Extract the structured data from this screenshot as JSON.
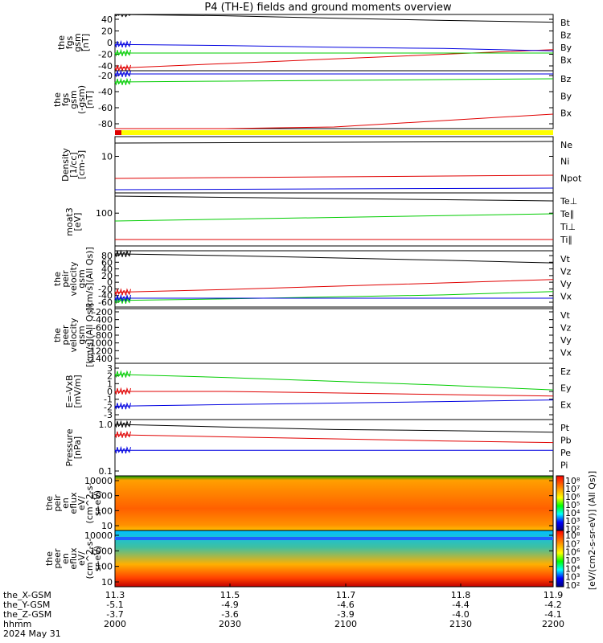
{
  "title": "P4 (TH-E) fields and ground moments overview",
  "colors": {
    "black": "#000000",
    "red": "#e00000",
    "green": "#00cc00",
    "blue": "#0000e0",
    "yellow": "#ffff00",
    "bar_red": "#e00000"
  },
  "panels": [
    {
      "id": "fgs-gsm-1",
      "ylabel": [
        "the",
        "fgs",
        "gsm",
        "[nT]"
      ],
      "ticks": [
        "40",
        "20",
        "0",
        "-20",
        "-40"
      ],
      "legend": [
        {
          "label": "Bt",
          "color": "black"
        },
        {
          "label": "Bz",
          "color": "red"
        },
        {
          "label": "By",
          "color": "green"
        },
        {
          "label": "Bx",
          "color": "blue"
        }
      ]
    },
    {
      "id": "fgs-gsm-2",
      "ylabel": [
        "the",
        "fgs",
        "gsm",
        "(-gsm)",
        "[nT]"
      ],
      "ticks": [
        "-20",
        "-40",
        "-60",
        "-80"
      ],
      "legend": [
        {
          "label": "Bz",
          "color": "red"
        },
        {
          "label": "By",
          "color": "green"
        },
        {
          "label": "Bx",
          "color": "blue"
        }
      ]
    },
    {
      "id": "quality-bar",
      "ylabel": [],
      "ticks": [],
      "legend": []
    },
    {
      "id": "density",
      "ylabel": [
        "Density",
        "[1/cc]",
        "[cm-3]"
      ],
      "ticks": [
        "10"
      ],
      "legend": [
        {
          "label": "Ne",
          "color": "red"
        },
        {
          "label": "Ni",
          "color": "black"
        },
        {
          "label": "Npot",
          "color": "blue"
        }
      ]
    },
    {
      "id": "temperature",
      "ylabel": [
        "moat3",
        "[eV]"
      ],
      "ticks": [
        "100"
      ],
      "legend": [
        {
          "label": "Te⊥",
          "color": "red"
        },
        {
          "label": "Te∥",
          "color": "black"
        },
        {
          "label": "Ti⊥",
          "color": "blue"
        },
        {
          "label": "Ti∥",
          "color": "green"
        }
      ]
    },
    {
      "id": "peir-velocity",
      "ylabel": [
        "the",
        "peir",
        "velocity",
        "gsm",
        "[km/s](All Qs)]"
      ],
      "ticks": [
        "80",
        "60",
        "40",
        "20",
        "0",
        "-20",
        "-40",
        "-60"
      ],
      "legend": [
        {
          "label": "Vt",
          "color": "black"
        },
        {
          "label": "Vz",
          "color": "red"
        },
        {
          "label": "Vy",
          "color": "green"
        },
        {
          "label": "Vx",
          "color": "blue"
        }
      ]
    },
    {
      "id": "peer-velocity",
      "ylabel": [
        "the",
        "peer",
        "velocity",
        "gsm",
        "[km/s](All Qs)]"
      ],
      "ticks": [
        "-200",
        "-400",
        "-600",
        "-800",
        "-1000",
        "-1200",
        "-1400"
      ],
      "legend": [
        {
          "label": "Vt",
          "color": "black"
        },
        {
          "label": "Vz",
          "color": "red"
        },
        {
          "label": "Vy",
          "color": "green"
        },
        {
          "label": "Vx",
          "color": "blue"
        }
      ]
    },
    {
      "id": "efield",
      "ylabel": [
        "E=-VxB",
        "[mV/m]"
      ],
      "ticks": [
        "3",
        "2",
        "1",
        "0",
        "-1",
        "-2",
        "-3"
      ],
      "legend": [
        {
          "label": "Ez",
          "color": "red"
        },
        {
          "label": "Ey",
          "color": "green"
        },
        {
          "label": "Ex",
          "color": "blue"
        }
      ]
    },
    {
      "id": "pressure",
      "ylabel": [
        "Pressure",
        "[nPa]"
      ],
      "ticks": [
        "1.0",
        "0.1"
      ],
      "legend": [
        {
          "label": "Pt",
          "color": "black"
        },
        {
          "label": "Pb",
          "color": "red"
        },
        {
          "label": "Pe",
          "color": "green"
        },
        {
          "label": "Pi",
          "color": "blue"
        }
      ]
    },
    {
      "id": "peir-eflux",
      "ylabel": [
        "the",
        "peir",
        "en",
        "eflux",
        "eV/",
        "(cm^2-s-",
        "sr-eV)"
      ],
      "ticks": [
        "10000",
        "1000",
        "100",
        "10"
      ],
      "legend": []
    },
    {
      "id": "peer-eflux",
      "ylabel": [
        "the",
        "peer",
        "en",
        "eflux",
        "eV/",
        "(cm^2-s-",
        "sr-eV)"
      ],
      "ticks": [
        "10000",
        "1000",
        "100",
        "10"
      ],
      "legend": []
    }
  ],
  "colorbar": {
    "ticks": [
      "10⁸",
      "10⁷",
      "10⁶",
      "10⁵",
      "10⁴",
      "10³",
      "10²"
    ],
    "ticks2": [
      "10⁸",
      "10⁷",
      "10⁶",
      "10⁵",
      "10⁴",
      "10³",
      "10²"
    ],
    "label": "[eV/(cm2-s-sr-eV)] (All Qs)]"
  },
  "xaxis": {
    "rows": [
      {
        "label": "the_X-GSM",
        "values": [
          "-5.1",
          "-4.9",
          "-4.6",
          "-4.4",
          "-4.2"
        ]
      },
      {
        "label": "the_Y-GSM",
        "values": [
          "-3.7",
          "-3.6",
          "-3.9",
          "-4.0",
          "-4.1"
        ]
      },
      {
        "label": "the_Z-GSM",
        "values": [
          "2000",
          "2030",
          "2100",
          "2130",
          "2200"
        ]
      },
      {
        "label": "hhmm",
        "values": []
      }
    ],
    "top_values": [
      "11.3",
      "11.5",
      "11.7",
      "11.8",
      "11.9"
    ],
    "date": "2024 May 31"
  },
  "chart_data": {
    "type": "line",
    "title": "P4 (TH-E) fields and ground moments overview",
    "x": [
      "2000",
      "2030",
      "2100",
      "2130",
      "2200"
    ],
    "series": [
      {
        "name": "Bt",
        "panel": "fgs-gsm-1",
        "values": [
          50,
          46,
          42,
          38,
          35
        ]
      },
      {
        "name": "Bz",
        "panel": "fgs-gsm-1",
        "values": [
          -44,
          -36,
          -28,
          -20,
          -12
        ]
      },
      {
        "name": "By",
        "panel": "fgs-gsm-1",
        "values": [
          -18,
          -18,
          -18,
          -18,
          -18
        ]
      },
      {
        "name": "Bx",
        "panel": "fgs-gsm-1",
        "values": [
          -3,
          -5,
          -8,
          -10,
          -14
        ]
      },
      {
        "name": "Bz",
        "panel": "fgs-gsm-2",
        "values": [
          -100,
          -92,
          -84,
          -76,
          -68
        ]
      },
      {
        "name": "By",
        "panel": "fgs-gsm-2",
        "values": [
          -28,
          -27,
          -26,
          -25,
          -24
        ]
      },
      {
        "name": "Bx",
        "panel": "fgs-gsm-2",
        "values": [
          -18,
          -18,
          -18,
          -18,
          -18
        ]
      },
      {
        "name": "Vt",
        "panel": "peir-velocity",
        "values": [
          85,
          80,
          73,
          66,
          58
        ]
      },
      {
        "name": "Vz",
        "panel": "peir-velocity",
        "values": [
          -30,
          -22,
          -12,
          -2,
          8
        ]
      },
      {
        "name": "Vy",
        "panel": "peir-velocity",
        "values": [
          -55,
          -50,
          -44,
          -38,
          -28
        ]
      },
      {
        "name": "Vx",
        "panel": "peir-velocity",
        "values": [
          -48,
          -48,
          -48,
          -48,
          -48
        ]
      },
      {
        "name": "Ez",
        "panel": "efield",
        "values": [
          0,
          0,
          -0.2,
          -0.4,
          -0.6
        ]
      },
      {
        "name": "Ey",
        "panel": "efield",
        "values": [
          2.2,
          1.8,
          1.3,
          0.8,
          0.2
        ]
      },
      {
        "name": "Ex",
        "panel": "efield",
        "values": [
          -1.9,
          -1.7,
          -1.5,
          -1.3,
          -1.1
        ]
      },
      {
        "name": "Pt",
        "panel": "pressure",
        "values": [
          1.0,
          0.95,
          0.9,
          0.88,
          0.85
        ]
      },
      {
        "name": "Pb",
        "panel": "pressure",
        "values": [
          0.8,
          0.76,
          0.72,
          0.68,
          0.65
        ]
      },
      {
        "name": "Pi",
        "panel": "pressure",
        "values": [
          0.5,
          0.5,
          0.5,
          0.5,
          0.5
        ]
      }
    ]
  }
}
